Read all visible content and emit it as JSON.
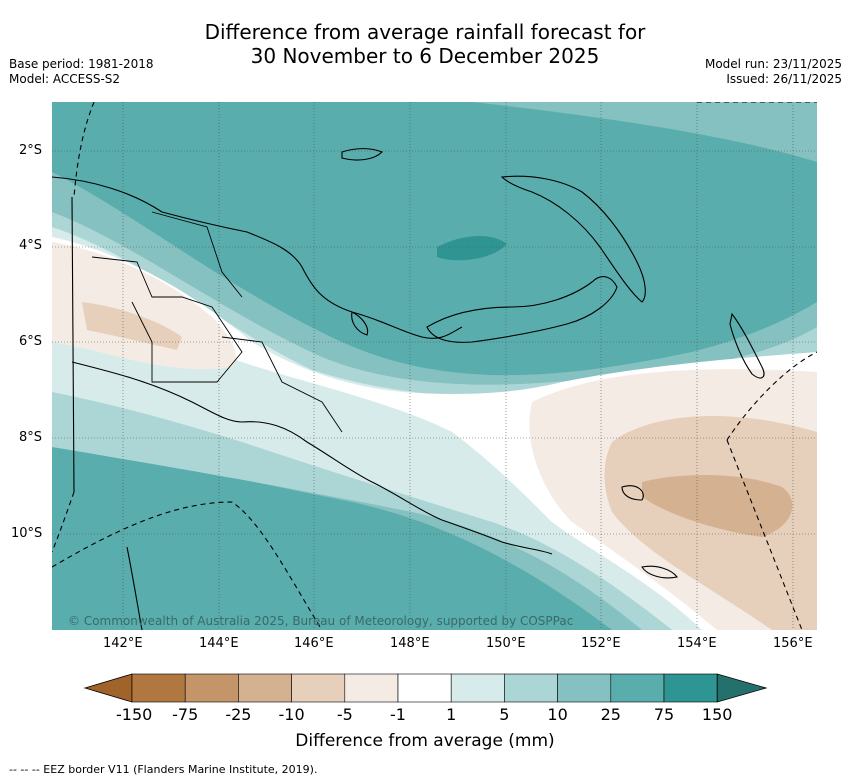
{
  "title_line1": "Difference from average rainfall forecast for",
  "title_line2": "30 November to 6 December 2025",
  "base_period": "Base period: 1981-2018",
  "model": "Model: ACCESS-S2",
  "model_run": "Model run: 23/11/2025",
  "issued": "Issued: 26/11/2025",
  "copyright": "© Commonwealth of Australia 2025, Bureau of Meteorology, supported by COSPPac",
  "lat_labels": [
    "2°S",
    "4°S",
    "6°S",
    "8°S",
    "10°S"
  ],
  "lon_labels": [
    "142°E",
    "144°E",
    "146°E",
    "148°E",
    "150°E",
    "152°E",
    "154°E",
    "156°E"
  ],
  "colorbar": {
    "title": "Difference from average (mm)",
    "ticks": [
      "-150",
      "-75",
      "-25",
      "-10",
      "-5",
      "-1",
      "1",
      "5",
      "10",
      "25",
      "75",
      "150"
    ],
    "colors": [
      "#a0632a",
      "#b07840",
      "#c39569",
      "#d4b291",
      "#e6d0bc",
      "#f4ebe4",
      "#ffffff",
      "#d6ebea",
      "#acd6d5",
      "#84c1c0",
      "#5aadad",
      "#2e9592",
      "#23706c"
    ]
  },
  "footer": "-- -- -- EEZ border V11 (Flanders Marine Institute, 2019)."
}
